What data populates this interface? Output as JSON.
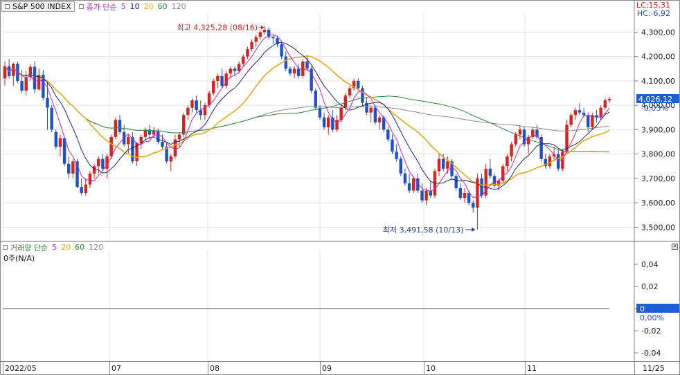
{
  "header": {
    "symbol": "S&P 500 INDEX",
    "ma_title": "종가 단순",
    "ma_periods": [
      "5",
      "10",
      "20",
      "60",
      "120"
    ],
    "lc": "LC:15,31",
    "hc": "HC:-6,92"
  },
  "volume_panel": {
    "title": "거래량 단순",
    "ma_periods": [
      "5",
      "20",
      "60",
      "120"
    ],
    "subtitle": "0주(N/A)",
    "y_ticks": [
      "0,04",
      "0,02",
      "0",
      "-0,02",
      "-0,04"
    ],
    "current_label": "0",
    "current_change": "0,00%"
  },
  "price_panel": {
    "y_ticks": [
      "4,300,00",
      "4,200,00",
      "4,100,00",
      "4,000,00",
      "3,900,00",
      "3,800,00",
      "3,700,00",
      "3,600,00",
      "3,500,00"
    ],
    "current_label": "4,026,12",
    "current_change": "-0,03%",
    "high_annotation": "최고 4,325,28 (08/16)",
    "low_annotation": "최저 3,491,58 (10/13)"
  },
  "x_axis": {
    "labels": [
      "2022/05",
      "07",
      "08",
      "09",
      "10",
      "11",
      "11/25"
    ]
  },
  "colors": {
    "up": "#d8231f",
    "down": "#2150c8",
    "ma5": "#c026c0",
    "ma10": "#1a237e",
    "ma20": "#e6a817",
    "ma60": "#2e8b3a",
    "ma120": "#8a8a8a"
  },
  "chart_data": {
    "type": "candlestick",
    "title": "S&P 500 INDEX",
    "y_unit": "index points",
    "ylim": [
      3450,
      4375
    ],
    "grid": true,
    "series": [
      {
        "name": "S&P 500 INDEX",
        "ohlc": [
          [
            4110,
            4180,
            4080,
            4160
          ],
          [
            4160,
            4190,
            4110,
            4120
          ],
          [
            4120,
            4175,
            4080,
            4170
          ],
          [
            4170,
            4180,
            4090,
            4100
          ],
          [
            4100,
            4145,
            4050,
            4060
          ],
          [
            4060,
            4140,
            4040,
            4115
          ],
          [
            4115,
            4170,
            4100,
            4158
          ],
          [
            4158,
            4180,
            4050,
            4065
          ],
          [
            4065,
            4150,
            4060,
            4125
          ],
          [
            4125,
            4145,
            4020,
            4030
          ],
          [
            4030,
            4100,
            3900,
            3990
          ],
          [
            3990,
            4000,
            3890,
            3900
          ],
          [
            3890,
            3900,
            3820,
            3830
          ],
          [
            3830,
            3880,
            3790,
            3865
          ],
          [
            3865,
            3870,
            3750,
            3760
          ],
          [
            3760,
            3790,
            3700,
            3720
          ],
          [
            3720,
            3780,
            3700,
            3770
          ],
          [
            3770,
            3780,
            3660,
            3665
          ],
          [
            3665,
            3700,
            3630,
            3640
          ],
          [
            3640,
            3700,
            3630,
            3675
          ],
          [
            3675,
            3730,
            3660,
            3720
          ],
          [
            3720,
            3760,
            3700,
            3750
          ],
          [
            3750,
            3790,
            3720,
            3780
          ],
          [
            3780,
            3800,
            3730,
            3740
          ],
          [
            3740,
            3800,
            3700,
            3790
          ],
          [
            3790,
            3880,
            3780,
            3870
          ],
          [
            3870,
            3950,
            3860,
            3940
          ],
          [
            3940,
            3960,
            3880,
            3890
          ],
          [
            3890,
            3920,
            3830,
            3840
          ],
          [
            3840,
            3880,
            3800,
            3870
          ],
          [
            3870,
            3890,
            3760,
            3770
          ],
          [
            3770,
            3850,
            3750,
            3845
          ],
          [
            3845,
            3880,
            3820,
            3870
          ],
          [
            3870,
            3910,
            3860,
            3900
          ],
          [
            3900,
            3920,
            3860,
            3880
          ],
          [
            3880,
            3910,
            3870,
            3895
          ],
          [
            3895,
            3905,
            3840,
            3850
          ],
          [
            3850,
            3880,
            3820,
            3830
          ],
          [
            3830,
            3850,
            3760,
            3770
          ],
          [
            3770,
            3800,
            3730,
            3790
          ],
          [
            3790,
            3880,
            3780,
            3860
          ],
          [
            3860,
            3890,
            3830,
            3880
          ],
          [
            3880,
            3970,
            3870,
            3960
          ],
          [
            3960,
            4000,
            3940,
            3990
          ],
          [
            3990,
            4030,
            3970,
            4020
          ],
          [
            4020,
            4040,
            3970,
            3980
          ],
          [
            3980,
            4020,
            3940,
            3960
          ],
          [
            3960,
            4010,
            3940,
            4000
          ],
          [
            4000,
            4060,
            3990,
            4050
          ],
          [
            4050,
            4110,
            4040,
            4100
          ],
          [
            4100,
            4130,
            4070,
            4120
          ],
          [
            4120,
            4150,
            4070,
            4080
          ],
          [
            4080,
            4140,
            4070,
            4130
          ],
          [
            4130,
            4160,
            4110,
            4150
          ],
          [
            4150,
            4160,
            4120,
            4140
          ],
          [
            4140,
            4180,
            4130,
            4170
          ],
          [
            4170,
            4210,
            4160,
            4200
          ],
          [
            4200,
            4240,
            4190,
            4230
          ],
          [
            4230,
            4270,
            4220,
            4260
          ],
          [
            4260,
            4290,
            4240,
            4280
          ],
          [
            4280,
            4310,
            4270,
            4300
          ],
          [
            4300,
            4325,
            4290,
            4310
          ],
          [
            4310,
            4320,
            4270,
            4280
          ],
          [
            4280,
            4290,
            4250,
            4275
          ],
          [
            4275,
            4285,
            4240,
            4250
          ],
          [
            4250,
            4260,
            4190,
            4200
          ],
          [
            4200,
            4220,
            4140,
            4150
          ],
          [
            4150,
            4160,
            4120,
            4130
          ],
          [
            4130,
            4160,
            4110,
            4150
          ],
          [
            4150,
            4170,
            4110,
            4120
          ],
          [
            4120,
            4190,
            4110,
            4180
          ],
          [
            4180,
            4200,
            4140,
            4150
          ],
          [
            4150,
            4160,
            4050,
            4060
          ],
          [
            4060,
            4070,
            3980,
            3990
          ],
          [
            3990,
            4000,
            3940,
            3950
          ],
          [
            3950,
            3970,
            3900,
            3910
          ],
          [
            3910,
            3960,
            3880,
            3950
          ],
          [
            3950,
            3980,
            3890,
            3900
          ],
          [
            3900,
            3960,
            3890,
            3940
          ],
          [
            3940,
            4000,
            3930,
            3990
          ],
          [
            3990,
            4050,
            3980,
            4040
          ],
          [
            4040,
            4080,
            4030,
            4070
          ],
          [
            4070,
            4110,
            4060,
            4100
          ],
          [
            4100,
            4110,
            4060,
            4070
          ],
          [
            4070,
            4080,
            4000,
            4010
          ],
          [
            4010,
            4030,
            3960,
            3970
          ],
          [
            3970,
            4000,
            3930,
            3990
          ],
          [
            3990,
            4000,
            3920,
            3930
          ],
          [
            3930,
            3960,
            3900,
            3950
          ],
          [
            3950,
            3960,
            3890,
            3900
          ],
          [
            3900,
            3910,
            3850,
            3860
          ],
          [
            3860,
            3880,
            3800,
            3810
          ],
          [
            3810,
            3840,
            3770,
            3780
          ],
          [
            3780,
            3790,
            3710,
            3720
          ],
          [
            3720,
            3740,
            3670,
            3680
          ],
          [
            3680,
            3720,
            3640,
            3650
          ],
          [
            3650,
            3710,
            3640,
            3700
          ],
          [
            3700,
            3720,
            3640,
            3650
          ],
          [
            3650,
            3680,
            3600,
            3610
          ],
          [
            3610,
            3660,
            3590,
            3650
          ],
          [
            3650,
            3690,
            3620,
            3630
          ],
          [
            3630,
            3740,
            3620,
            3730
          ],
          [
            3730,
            3800,
            3710,
            3780
          ],
          [
            3780,
            3800,
            3730,
            3740
          ],
          [
            3740,
            3790,
            3720,
            3770
          ],
          [
            3770,
            3780,
            3700,
            3710
          ],
          [
            3710,
            3720,
            3650,
            3660
          ],
          [
            3660,
            3680,
            3610,
            3620
          ],
          [
            3620,
            3660,
            3600,
            3640
          ],
          [
            3640,
            3650,
            3590,
            3600
          ],
          [
            3600,
            3610,
            3560,
            3580
          ],
          [
            3580,
            3720,
            3490,
            3700
          ],
          [
            3700,
            3720,
            3620,
            3630
          ],
          [
            3630,
            3760,
            3620,
            3740
          ],
          [
            3740,
            3780,
            3700,
            3710
          ],
          [
            3710,
            3720,
            3660,
            3670
          ],
          [
            3670,
            3700,
            3650,
            3690
          ],
          [
            3690,
            3760,
            3680,
            3750
          ],
          [
            3750,
            3800,
            3730,
            3790
          ],
          [
            3790,
            3850,
            3770,
            3840
          ],
          [
            3840,
            3890,
            3830,
            3880
          ],
          [
            3880,
            3920,
            3860,
            3900
          ],
          [
            3900,
            3910,
            3830,
            3840
          ],
          [
            3840,
            3880,
            3800,
            3870
          ],
          [
            3870,
            3910,
            3860,
            3900
          ],
          [
            3900,
            3920,
            3860,
            3870
          ],
          [
            3870,
            3880,
            3770,
            3780
          ],
          [
            3780,
            3800,
            3740,
            3750
          ],
          [
            3750,
            3800,
            3740,
            3790
          ],
          [
            3790,
            3830,
            3770,
            3800
          ],
          [
            3800,
            3820,
            3730,
            3740
          ],
          [
            3740,
            3820,
            3730,
            3810
          ],
          [
            3810,
            3940,
            3800,
            3920
          ],
          [
            3920,
            3970,
            3910,
            3960
          ],
          [
            3960,
            3990,
            3940,
            3980
          ],
          [
            3980,
            4010,
            3960,
            3970
          ],
          [
            3970,
            3990,
            3950,
            3960
          ],
          [
            3960,
            3970,
            3890,
            3910
          ],
          [
            3910,
            3970,
            3900,
            3960
          ],
          [
            3960,
            3980,
            3930,
            3950
          ],
          [
            3950,
            4000,
            3940,
            3990
          ],
          [
            3990,
            4030,
            3980,
            4020
          ],
          [
            4020,
            4035,
            4010,
            4026
          ]
        ]
      }
    ],
    "moving_averages": [
      "5",
      "10",
      "20",
      "60",
      "120"
    ],
    "volume": {
      "subtitle": "0주(N/A)",
      "ylim": [
        -0.05,
        0.05
      ],
      "value": 0
    }
  }
}
